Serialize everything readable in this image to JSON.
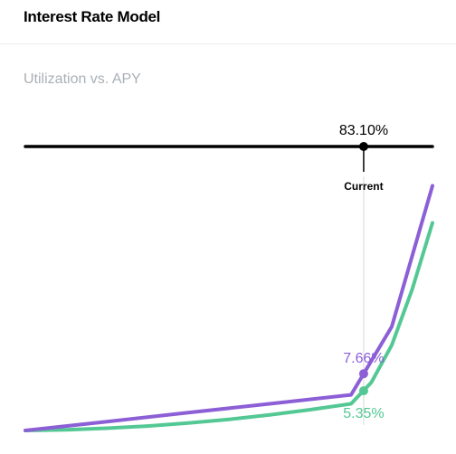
{
  "header": {
    "title": "Interest Rate Model"
  },
  "chart_data": {
    "type": "line",
    "title": "Interest Rate Model",
    "subtitle": "Utilization vs. APY",
    "x_unit": "utilization %",
    "xlim": [
      0,
      100
    ],
    "kink_utilization": 80,
    "current": {
      "utilization": 83.1,
      "label": "83.10%",
      "marker_label": "Current"
    },
    "series": [
      {
        "name": "",
        "color": "#8c5fd6",
        "x": [
          0,
          20,
          40,
          60,
          80,
          90,
          100
        ],
        "y": [
          0.0,
          1.2,
          2.4,
          3.6,
          4.8,
          14.0,
          33.0
        ],
        "current_value": 7.66,
        "current_label": "7.66%"
      },
      {
        "name": "",
        "color": "#54c894",
        "x": [
          0,
          10,
          20,
          30,
          40,
          50,
          60,
          70,
          80,
          85,
          90,
          95,
          100
        ],
        "y": [
          0.0,
          0.1,
          0.3,
          0.6,
          1.0,
          1.5,
          2.1,
          2.8,
          3.6,
          6.5,
          11.5,
          19.0,
          28.0
        ],
        "current_value": 5.35,
        "current_label": "5.35%"
      }
    ],
    "colors": {
      "axis": "#000000",
      "guide": "#d8d8d8",
      "subtitle": "#aab0b6"
    }
  }
}
